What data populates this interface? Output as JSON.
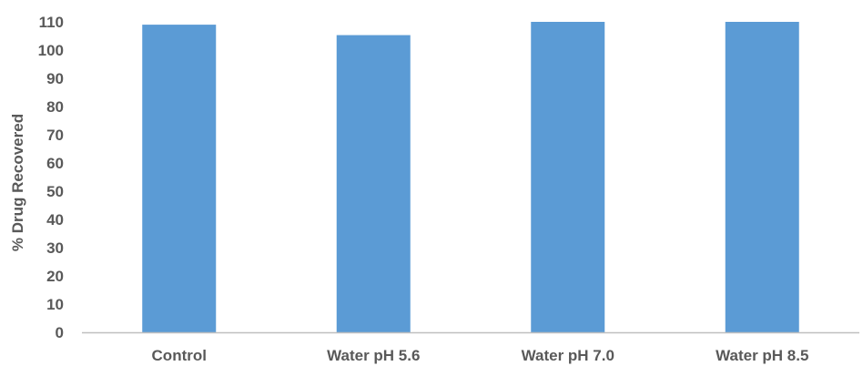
{
  "chart_data": {
    "type": "bar",
    "categories": [
      "Control",
      "Water pH 5.6",
      "Water pH 7.0",
      "Water pH 8.5"
    ],
    "values": [
      109,
      105.3,
      110.2,
      110.1
    ],
    "title": "",
    "xlabel": "",
    "ylabel": "% Drug Recovered",
    "ylim": [
      0,
      110
    ],
    "yticks": [
      0,
      10,
      20,
      30,
      40,
      50,
      60,
      70,
      80,
      90,
      100,
      110
    ],
    "grid": false,
    "legend": "none",
    "bar_color": "#5B9BD5",
    "axis_color": "#BFBFBF",
    "text_color": "#595959"
  }
}
